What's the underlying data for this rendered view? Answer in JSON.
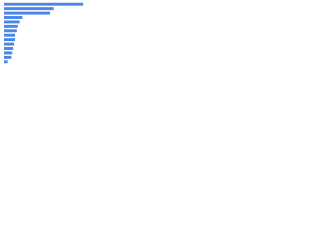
{
  "chart_data": {
    "type": "hbar",
    "categories": [
      null,
      null,
      null,
      null,
      null,
      null,
      null,
      null,
      null,
      null,
      null,
      null,
      null,
      null
    ],
    "values": [
      86,
      54,
      50,
      20,
      17,
      15,
      14,
      12,
      12,
      11,
      10,
      9,
      8,
      4
    ],
    "color": "#4a86e8",
    "xlim": [
      0,
      100
    ]
  }
}
